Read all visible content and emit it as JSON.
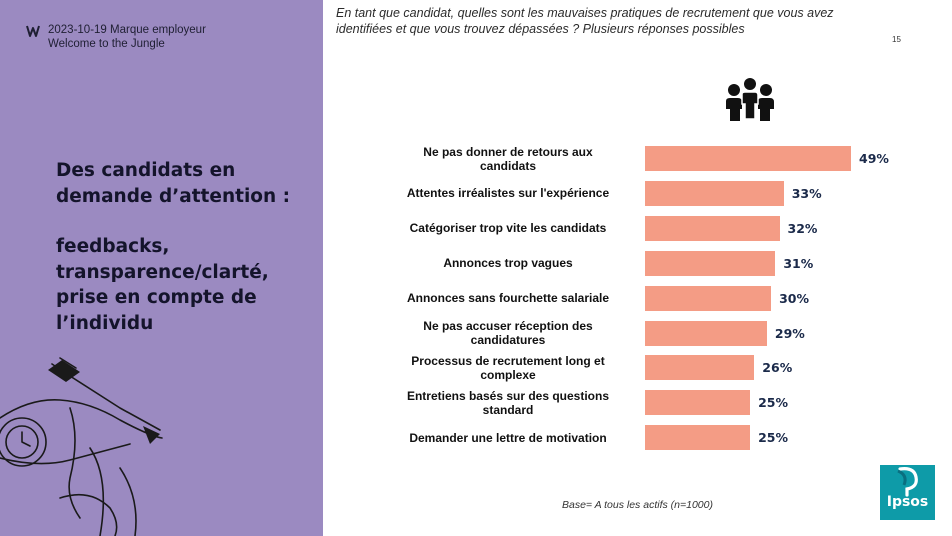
{
  "header": {
    "date_brand": "2023-10-19 Marque employeur",
    "company": "Welcome to the Jungle",
    "page_number": "15"
  },
  "headline": {
    "line1": "Des candidats en",
    "line2": "demande d’attention :",
    "line3": "feedbacks,",
    "line4": "transparence/clarté,",
    "line5": "prise en compte de",
    "line6": "l’individu"
  },
  "question": "En tant que candidat, quelles sont les mauvaises pratiques de recrutement que vous avez identifiées et que vous trouvez dépassées ? Plusieurs réponses possibles",
  "base_note": "Base= A tous les actifs  (n=1000)",
  "brand_logo_text": "Ipsos",
  "colors": {
    "left_panel": "#9b8ac1",
    "bar": "#f49c85",
    "value_text": "#1b2a4a",
    "ipsos": "#0e9ba8"
  },
  "icons": [
    "brand-logo-icon",
    "people-group-icon",
    "hand-watch-illustration",
    "ipsos-logo"
  ],
  "chart_data": {
    "type": "bar",
    "orientation": "horizontal",
    "categories": [
      "Ne pas donner de retours aux candidats",
      "Attentes irréalistes sur l'expérience",
      "Catégoriser trop vite les candidats",
      "Annonces trop vagues",
      "Annonces sans fourchette salariale",
      "Ne pas accuser réception des candidatures",
      "Processus de recrutement long et complexe",
      "Entretiens basés sur des questions standard",
      "Demander une lettre de motivation"
    ],
    "label_lines": [
      [
        "Ne pas donner de retours aux",
        "candidats"
      ],
      [
        "Attentes irréalistes sur l'expérience"
      ],
      [
        "Catégoriser trop vite les candidats"
      ],
      [
        "Annonces trop vagues"
      ],
      [
        "Annonces sans fourchette salariale"
      ],
      [
        "Ne pas accuser réception des",
        "candidatures"
      ],
      [
        "Processus de recrutement long et",
        "complexe"
      ],
      [
        "Entretiens basés sur des questions",
        "standard"
      ],
      [
        "Demander une lettre de motivation"
      ]
    ],
    "values": [
      49,
      33,
      32,
      31,
      30,
      29,
      26,
      25,
      25
    ],
    "value_labels": [
      "49%",
      "33%",
      "32%",
      "31%",
      "30%",
      "29%",
      "26%",
      "25%",
      "25%"
    ],
    "unit": "%",
    "xlim": [
      0,
      100
    ],
    "grid": false,
    "legend": "none"
  }
}
